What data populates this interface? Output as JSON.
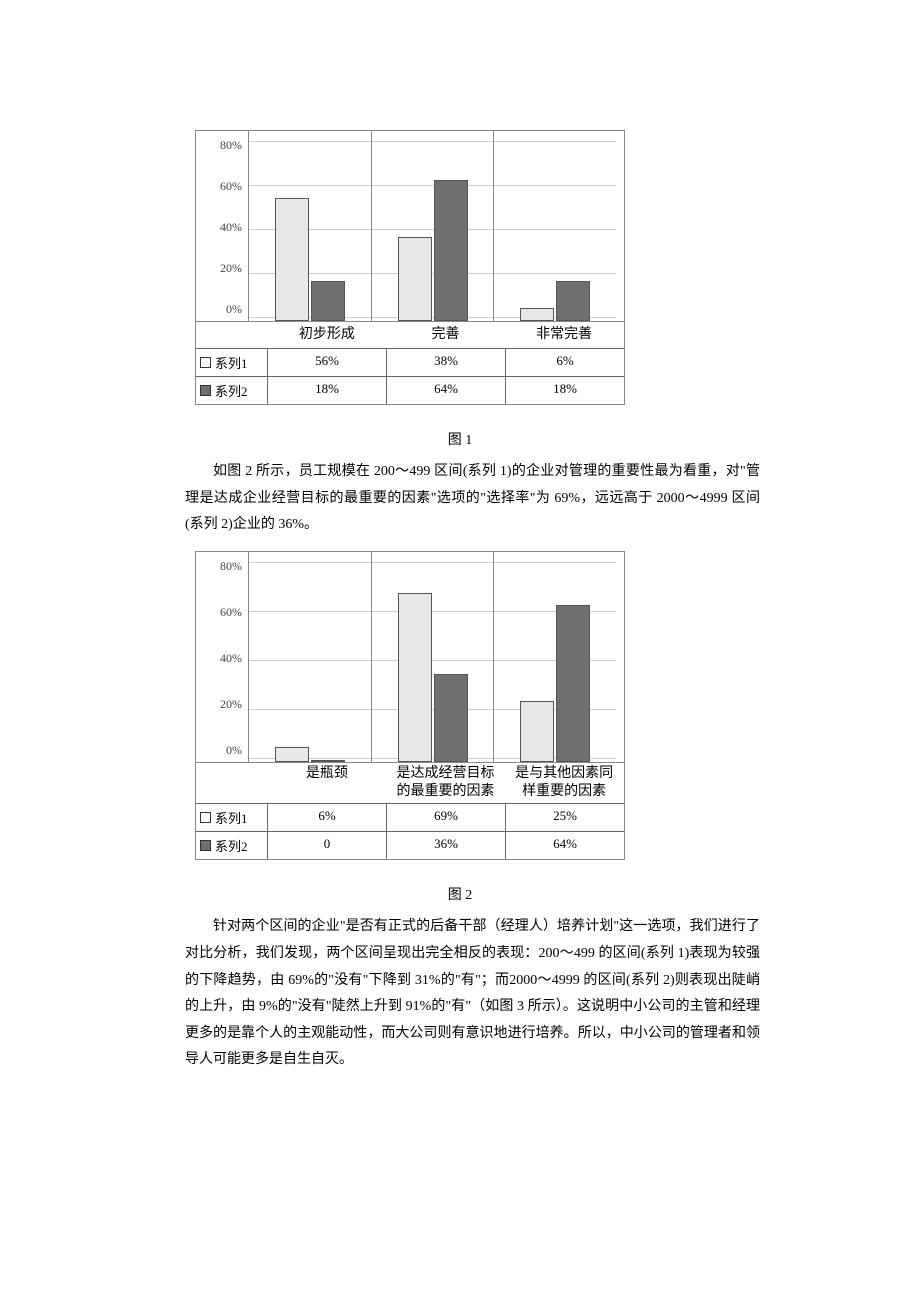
{
  "chart1": {
    "type": "bar",
    "yticks": [
      "80%",
      "60%",
      "40%",
      "20%",
      "0%"
    ],
    "ylim_max": 80,
    "categories": [
      "初步形成",
      "完善",
      "非常完善"
    ],
    "series": [
      {
        "name": "系列1",
        "swatch": "s1",
        "values": [
          56,
          38,
          6
        ],
        "labels": [
          "56%",
          "38%",
          "6%"
        ]
      },
      {
        "name": "系列2",
        "swatch": "s2",
        "values": [
          18,
          64,
          18
        ],
        "labels": [
          "18%",
          "64%",
          "18%"
        ]
      }
    ],
    "bar_colors": {
      "s1": "#e8e8e8",
      "s2": "#6f6f6f"
    },
    "border_color": "#888888",
    "grid_color": "#cccccc",
    "caption": "图 1"
  },
  "para1": {
    "text": "如图 2 所示，员工规模在 200～499 区间(系列 1)的企业对管理的重要性最为看重，对\"管理是达成企业经营目标的最重要的因素\"选项的\"选择率\"为 69%，远远高于 2000～4999 区间(系列 2)企业的 36%。"
  },
  "chart2": {
    "type": "bar",
    "yticks": [
      "80%",
      "60%",
      "40%",
      "20%",
      "0%"
    ],
    "ylim_max": 80,
    "categories": [
      "是瓶颈",
      "是达成经营目标\n的最重要的因素",
      "是与其他因素同\n样重要的因素"
    ],
    "series": [
      {
        "name": "系列1",
        "swatch": "s1",
        "values": [
          6,
          69,
          25
        ],
        "labels": [
          "6%",
          "69%",
          "25%"
        ]
      },
      {
        "name": "系列2",
        "swatch": "s2",
        "values": [
          0,
          36,
          64
        ],
        "labels": [
          "0",
          "36%",
          "64%"
        ]
      }
    ],
    "bar_colors": {
      "s1": "#e8e8e8",
      "s2": "#6f6f6f"
    },
    "border_color": "#888888",
    "grid_color": "#cccccc",
    "caption": "图 2"
  },
  "para2": {
    "text": "针对两个区间的企业\"是否有正式的后备干部（经理人）培养计划\"这一选项，我们进行了对比分析，我们发现，两个区间呈现出完全相反的表现：200～499 的区间(系列 1)表现为较强的下降趋势，由 69%的\"没有\"下降到 31%的\"有\"；而2000～4999 的区间(系列 2)则表现出陡峭的上升，由 9%的\"没有\"陡然上升到 91%的\"有\"（如图 3 所示）。这说明中小公司的主管和经理更多的是靠个人的主观能动性，而大公司则有意识地进行培养。所以，中小公司的管理者和领导人可能更多是自生自灭。"
  },
  "legend_prefix": "■ ",
  "legend_prefix_hollow": "□ "
}
